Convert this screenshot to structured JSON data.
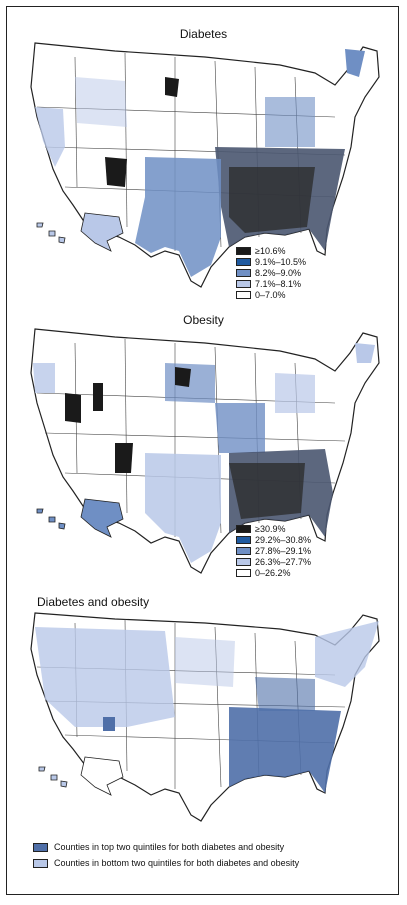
{
  "maps": [
    {
      "title": "Diabetes",
      "legend": [
        {
          "label": "≥10.6%",
          "color": "#1a1a1a"
        },
        {
          "label": "9.1%–10.5%",
          "color": "#1f5aa0"
        },
        {
          "label": "8.2%–9.0%",
          "color": "#6f8fc4"
        },
        {
          "label": "7.1%–8.1%",
          "color": "#b9c8e8"
        },
        {
          "label": "0–7.0%",
          "color": "#ffffff"
        }
      ]
    },
    {
      "title": "Obesity",
      "legend": [
        {
          "label": "≥30.9%",
          "color": "#1a1a1a"
        },
        {
          "label": "29.2%–30.8%",
          "color": "#1f5aa0"
        },
        {
          "label": "27.8%–29.1%",
          "color": "#6f8fc4"
        },
        {
          "label": "26.3%–27.7%",
          "color": "#b9c8e8"
        },
        {
          "label": "0–26.2%",
          "color": "#ffffff"
        }
      ]
    },
    {
      "title": "Diabetes and obesity",
      "legend": [
        {
          "label": "Counties in top two quintiles for both diabetes and obesity",
          "color": "#4f6fa8"
        },
        {
          "label": "Counties in bottom two quintiles for both diabetes and obesity",
          "color": "#b9c8e8"
        }
      ]
    }
  ]
}
